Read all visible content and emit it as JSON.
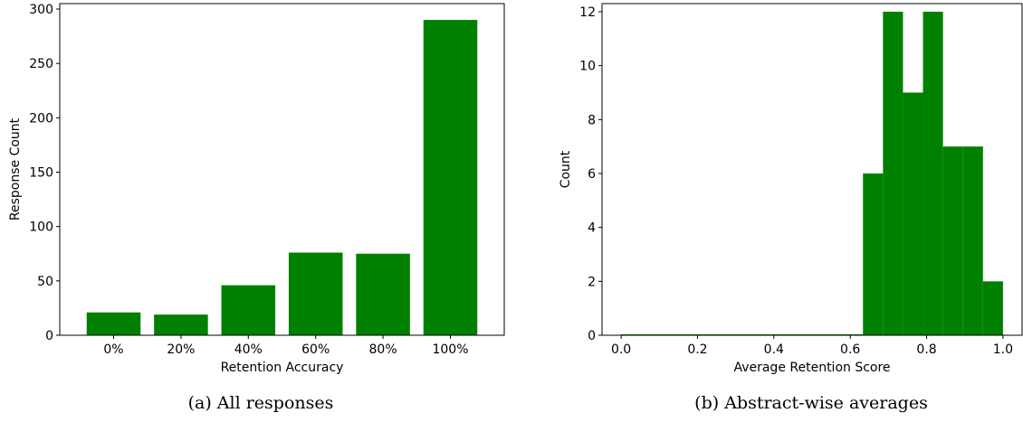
{
  "chart_data": [
    {
      "type": "bar",
      "categories": [
        "0%",
        "20%",
        "40%",
        "60%",
        "80%",
        "100%"
      ],
      "values": [
        21,
        19,
        46,
        76,
        75,
        290
      ],
      "xlabel": "Retention Accuracy",
      "ylabel": "Response Count",
      "ylim": [
        0,
        305
      ],
      "yticks": [
        0,
        50,
        100,
        150,
        200,
        250,
        300
      ],
      "color": "#008000",
      "caption": "(a) All responses",
      "grid": false
    },
    {
      "type": "bar",
      "subtype": "histogram",
      "bins": [
        {
          "x0": 0.0,
          "x1": 0.6333,
          "count": 0
        },
        {
          "x0": 0.6333,
          "x1": 0.6857,
          "count": 6
        },
        {
          "x0": 0.6857,
          "x1": 0.7381,
          "count": 12
        },
        {
          "x0": 0.7381,
          "x1": 0.7905,
          "count": 9
        },
        {
          "x0": 0.7905,
          "x1": 0.8429,
          "count": 12
        },
        {
          "x0": 0.8429,
          "x1": 0.8952,
          "count": 7
        },
        {
          "x0": 0.8952,
          "x1": 0.9476,
          "count": 7
        },
        {
          "x0": 0.9476,
          "x1": 1.0,
          "count": 2
        }
      ],
      "xlabel": "Average Retention Score",
      "ylabel": "Count",
      "xlim": [
        -0.05,
        1.05
      ],
      "ylim": [
        0,
        12.3
      ],
      "xticks": [
        0.0,
        0.2,
        0.4,
        0.6,
        0.8,
        1.0
      ],
      "xtick_labels": [
        "0.0",
        "0.2",
        "0.4",
        "0.6",
        "0.8",
        "1.0"
      ],
      "yticks": [
        0,
        2,
        4,
        6,
        8,
        10,
        12
      ],
      "color": "#008000",
      "caption": "(b) Abstract-wise averages",
      "grid": false
    }
  ]
}
